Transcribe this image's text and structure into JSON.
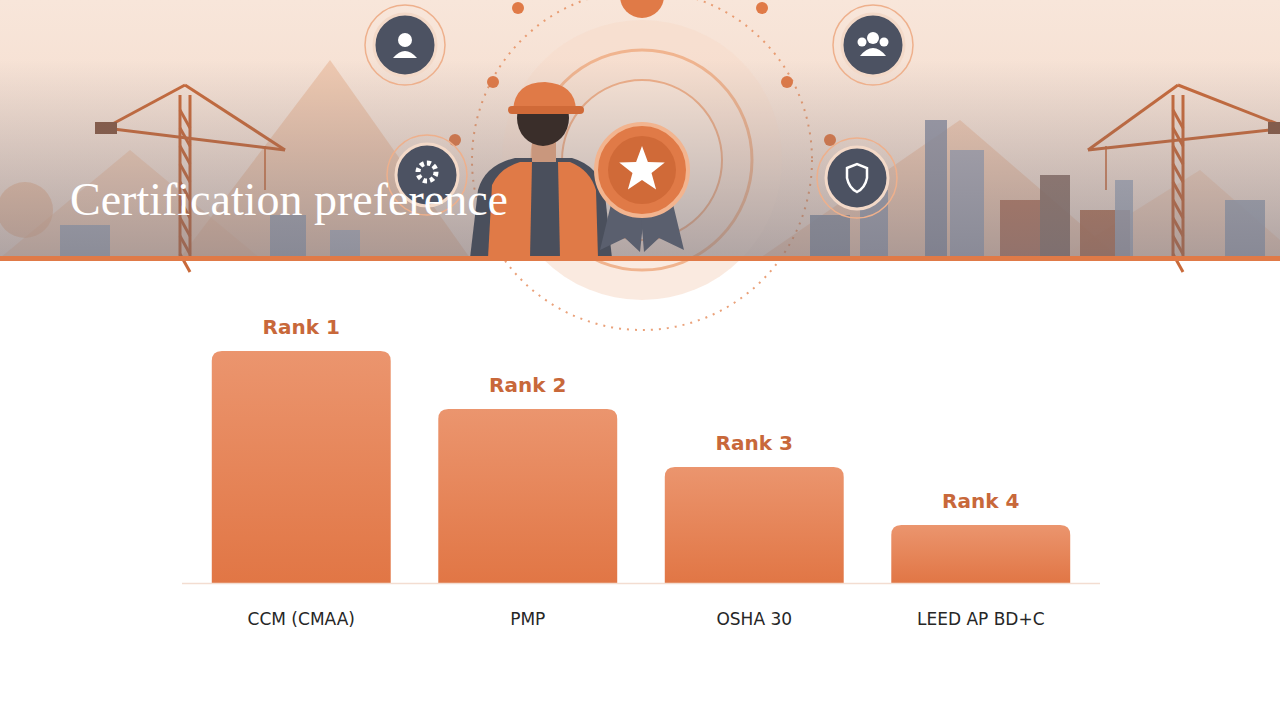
{
  "chart_data": {
    "type": "bar",
    "title": "Certification preference",
    "categories": [
      "CCM (CMAA)",
      "PMP",
      "OSHA 30",
      "LEED AP BD+C"
    ],
    "values": [
      4,
      3,
      2,
      1
    ],
    "annotations": [
      "Rank 1",
      "Rank 2",
      "Rank 3",
      "Rank 4"
    ],
    "color": "#e8875a",
    "ylim": [
      0,
      4
    ],
    "tick_labels": "x"
  }
}
